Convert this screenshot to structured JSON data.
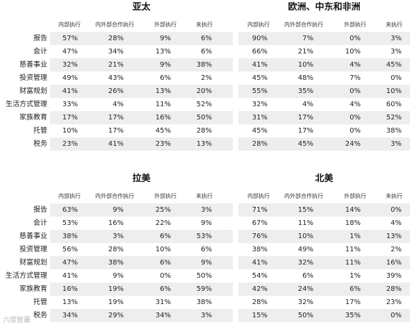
{
  "categories": [
    "报告",
    "会计",
    "慈善事业",
    "投资管理",
    "财富规划",
    "生活方式管理",
    "家族教育",
    "托管",
    "税务"
  ],
  "columns": [
    "内部执行",
    "内外部合作执行",
    "外部执行",
    "未执行"
  ],
  "regions": [
    {
      "name": "亚太",
      "rows": [
        [
          "57%",
          "28%",
          "9%",
          "6%"
        ],
        [
          "47%",
          "34%",
          "13%",
          "6%"
        ],
        [
          "32%",
          "21%",
          "9%",
          "38%"
        ],
        [
          "49%",
          "43%",
          "6%",
          "2%"
        ],
        [
          "41%",
          "26%",
          "13%",
          "20%"
        ],
        [
          "33%",
          "4%",
          "11%",
          "52%"
        ],
        [
          "17%",
          "17%",
          "16%",
          "50%"
        ],
        [
          "10%",
          "17%",
          "45%",
          "28%"
        ],
        [
          "23%",
          "41%",
          "23%",
          "13%"
        ]
      ]
    },
    {
      "name": "欧洲、中东和非洲",
      "rows": [
        [
          "90%",
          "7%",
          "0%",
          "3%"
        ],
        [
          "66%",
          "21%",
          "10%",
          "3%"
        ],
        [
          "41%",
          "10%",
          "4%",
          "45%"
        ],
        [
          "45%",
          "48%",
          "7%",
          "0%"
        ],
        [
          "55%",
          "35%",
          "0%",
          "10%"
        ],
        [
          "32%",
          "4%",
          "4%",
          "60%"
        ],
        [
          "31%",
          "17%",
          "0%",
          "52%"
        ],
        [
          "45%",
          "17%",
          "0%",
          "38%"
        ],
        [
          "28%",
          "45%",
          "24%",
          "3%"
        ]
      ]
    },
    {
      "name": "拉美",
      "rows": [
        [
          "63%",
          "9%",
          "25%",
          "3%"
        ],
        [
          "53%",
          "16%",
          "22%",
          "9%"
        ],
        [
          "38%",
          "3%",
          "6%",
          "53%"
        ],
        [
          "56%",
          "28%",
          "10%",
          "6%"
        ],
        [
          "47%",
          "38%",
          "6%",
          "9%"
        ],
        [
          "41%",
          "9%",
          "0%",
          "50%"
        ],
        [
          "16%",
          "19%",
          "6%",
          "59%"
        ],
        [
          "13%",
          "19%",
          "31%",
          "38%"
        ],
        [
          "34%",
          "29%",
          "34%",
          "3%"
        ]
      ]
    },
    {
      "name": "北美",
      "rows": [
        [
          "71%",
          "15%",
          "14%",
          "0%"
        ],
        [
          "67%",
          "11%",
          "18%",
          "4%"
        ],
        [
          "76%",
          "10%",
          "1%",
          "13%"
        ],
        [
          "38%",
          "49%",
          "11%",
          "2%"
        ],
        [
          "41%",
          "32%",
          "11%",
          "16%"
        ],
        [
          "54%",
          "6%",
          "1%",
          "39%"
        ],
        [
          "42%",
          "24%",
          "6%",
          "28%"
        ],
        [
          "28%",
          "32%",
          "17%",
          "23%"
        ],
        [
          "15%",
          "50%",
          "35%",
          "0%"
        ]
      ]
    }
  ],
  "watermark": "六度智囊"
}
